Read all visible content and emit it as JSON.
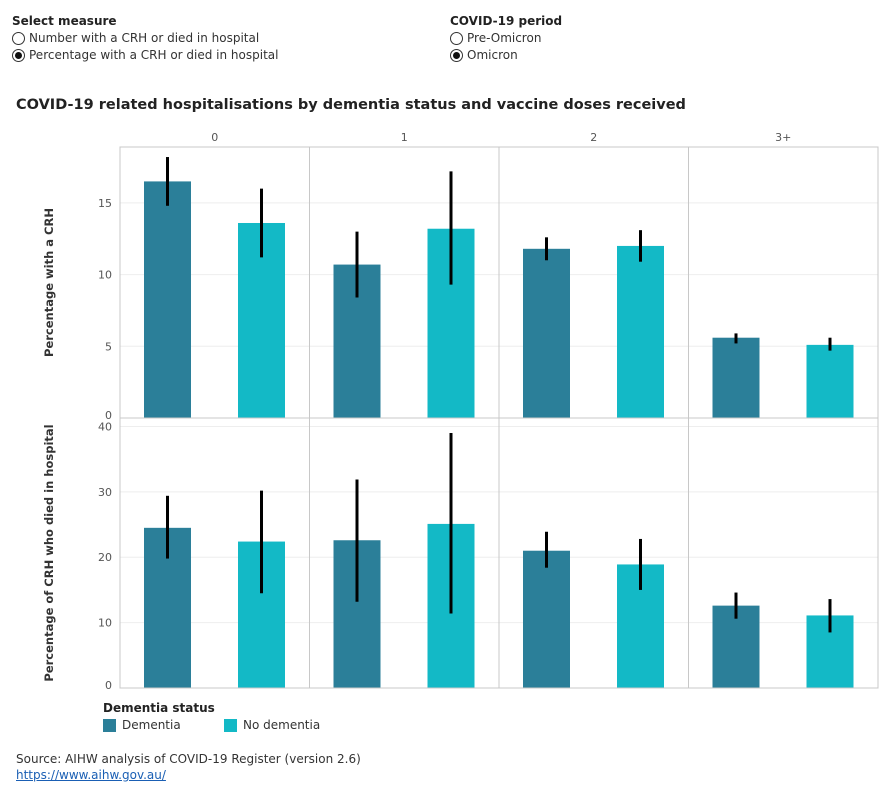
{
  "controls": {
    "measure": {
      "title": "Select measure",
      "options": [
        {
          "label": "Number with a CRH or died in hospital",
          "selected": false
        },
        {
          "label": "Percentage with a CRH or died in hospital",
          "selected": true
        }
      ]
    },
    "period": {
      "title": "COVID-19 period",
      "options": [
        {
          "label": "Pre-Omicron",
          "selected": false
        },
        {
          "label": "Omicron",
          "selected": true
        }
      ]
    }
  },
  "chart_title": "COVID-19 related hospitalisations by dementia status and vaccine doses received",
  "legend": {
    "title": "Dementia status",
    "items": [
      {
        "label": "Dementia",
        "color": "#2b7f99"
      },
      {
        "label": "No dementia",
        "color": "#13b9c6"
      }
    ]
  },
  "source": {
    "text": "Source: AIHW analysis of COVID-19 Register (version 2.6)",
    "link": "https://www.aihw.gov.au/"
  },
  "chart_data": [
    {
      "type": "bar",
      "ylabel": "Percentage with a CRH",
      "categories": [
        "0",
        "1",
        "2",
        "3+"
      ],
      "yticks": [
        0,
        5,
        10,
        15
      ],
      "ylim": [
        0,
        18.9
      ],
      "grid": true,
      "series": [
        {
          "name": "Dementia",
          "values": [
            16.5,
            10.7,
            11.8,
            5.6
          ],
          "lower": [
            14.8,
            8.4,
            11.0,
            5.2
          ],
          "upper": [
            18.2,
            13.0,
            12.6,
            5.9
          ]
        },
        {
          "name": "No dementia",
          "values": [
            13.6,
            13.2,
            12.0,
            5.1
          ],
          "lower": [
            11.2,
            9.3,
            10.9,
            4.7
          ],
          "upper": [
            16.0,
            17.2,
            13.1,
            5.6
          ]
        }
      ]
    },
    {
      "type": "bar",
      "ylabel": "Percentage of CRH who died in hospital",
      "categories": [
        "0",
        "1",
        "2",
        "3+"
      ],
      "yticks": [
        0,
        10,
        20,
        30,
        40
      ],
      "ylim": [
        0,
        41.3
      ],
      "grid": true,
      "series": [
        {
          "name": "Dementia",
          "values": [
            24.5,
            22.6,
            21.0,
            12.6
          ],
          "lower": [
            19.8,
            13.2,
            18.4,
            10.6
          ],
          "upper": [
            29.4,
            31.9,
            23.9,
            14.6
          ]
        },
        {
          "name": "No dementia",
          "values": [
            22.4,
            25.1,
            18.9,
            11.1
          ],
          "lower": [
            14.5,
            11.4,
            15.0,
            8.5
          ],
          "upper": [
            30.2,
            39.0,
            22.8,
            13.6
          ]
        }
      ]
    }
  ]
}
